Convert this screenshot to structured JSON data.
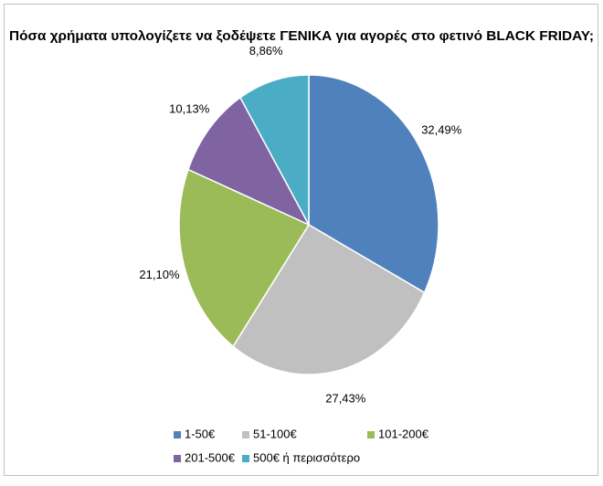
{
  "chart_data": {
    "type": "pie",
    "title": "Πόσα χρήματα υπολογίζετε να ξοδέψετε ΓΕΝΙΚΑ για αγορές στο φετινό BLACK FRIDAY;",
    "categories": [
      "1-50€",
      "51-100€",
      "101-200€",
      "201-500€",
      "500€ ή περισσότερο"
    ],
    "values": [
      32.49,
      27.43,
      21.1,
      10.13,
      8.86
    ],
    "value_labels": [
      "32,49%",
      "27,43%",
      "21,10%",
      "10,13%",
      "8,86%"
    ],
    "colors": [
      "#4f81bd",
      "#c0c0c0",
      "#9bbb59",
      "#8064a2",
      "#4bacc6"
    ],
    "legend": "bottom"
  }
}
